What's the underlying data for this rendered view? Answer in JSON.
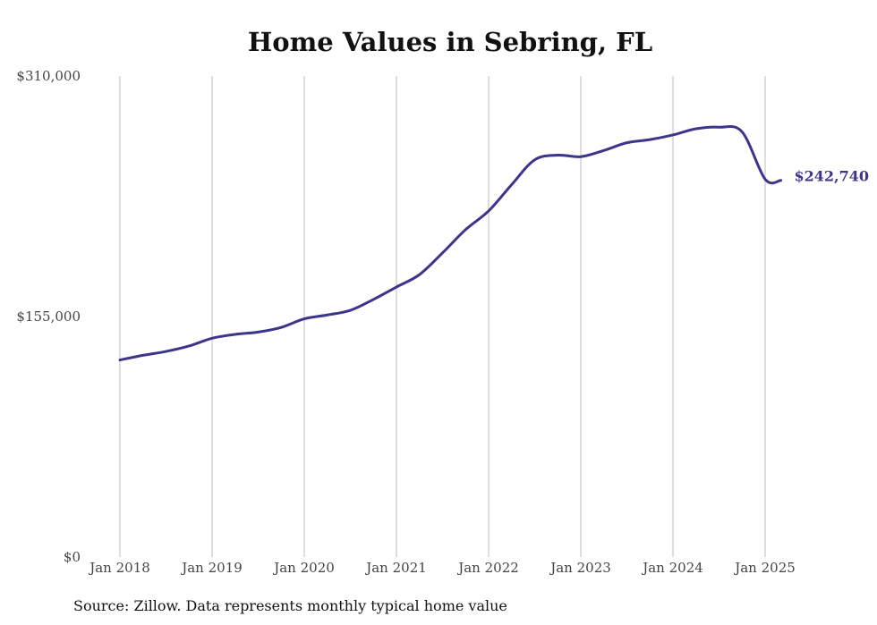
{
  "chart_data": {
    "type": "line",
    "title": "Home Values in Sebring, FL",
    "xlabel": "",
    "ylabel": "",
    "ylim": [
      0,
      310000
    ],
    "yticks": [
      0,
      155000,
      310000
    ],
    "ytick_labels": [
      "$0",
      "$155,000",
      "$310,000"
    ],
    "xticks": [
      2018,
      2019,
      2020,
      2021,
      2022,
      2023,
      2024,
      2025
    ],
    "xtick_labels": [
      "Jan 2018",
      "Jan 2019",
      "Jan 2020",
      "Jan 2021",
      "Jan 2022",
      "Jan 2023",
      "Jan 2024",
      "Jan 2025"
    ],
    "xlim": [
      2018,
      2025.25
    ],
    "grid": "vertical",
    "line_color": "#3d348b",
    "series": [
      {
        "name": "",
        "x": [
          2018.0,
          2018.25,
          2018.5,
          2018.75,
          2019.0,
          2019.25,
          2019.5,
          2019.75,
          2020.0,
          2020.25,
          2020.5,
          2020.75,
          2021.0,
          2021.25,
          2021.5,
          2021.75,
          2022.0,
          2022.25,
          2022.5,
          2022.75,
          2023.0,
          2023.25,
          2023.5,
          2023.75,
          2024.0,
          2024.25,
          2024.5,
          2024.75,
          2025.0,
          2025.17
        ],
        "y": [
          127000,
          130000,
          132500,
          136000,
          141000,
          143500,
          145000,
          148000,
          153500,
          156000,
          159000,
          166000,
          174000,
          182000,
          196000,
          211000,
          223000,
          240000,
          256000,
          259000,
          258000,
          262000,
          267000,
          269000,
          272000,
          276000,
          277000,
          274000,
          243500,
          242740
        ]
      }
    ],
    "end_label": "$242,740"
  },
  "footer": {
    "source": "Source: Zillow. Data represents monthly typical home value"
  }
}
